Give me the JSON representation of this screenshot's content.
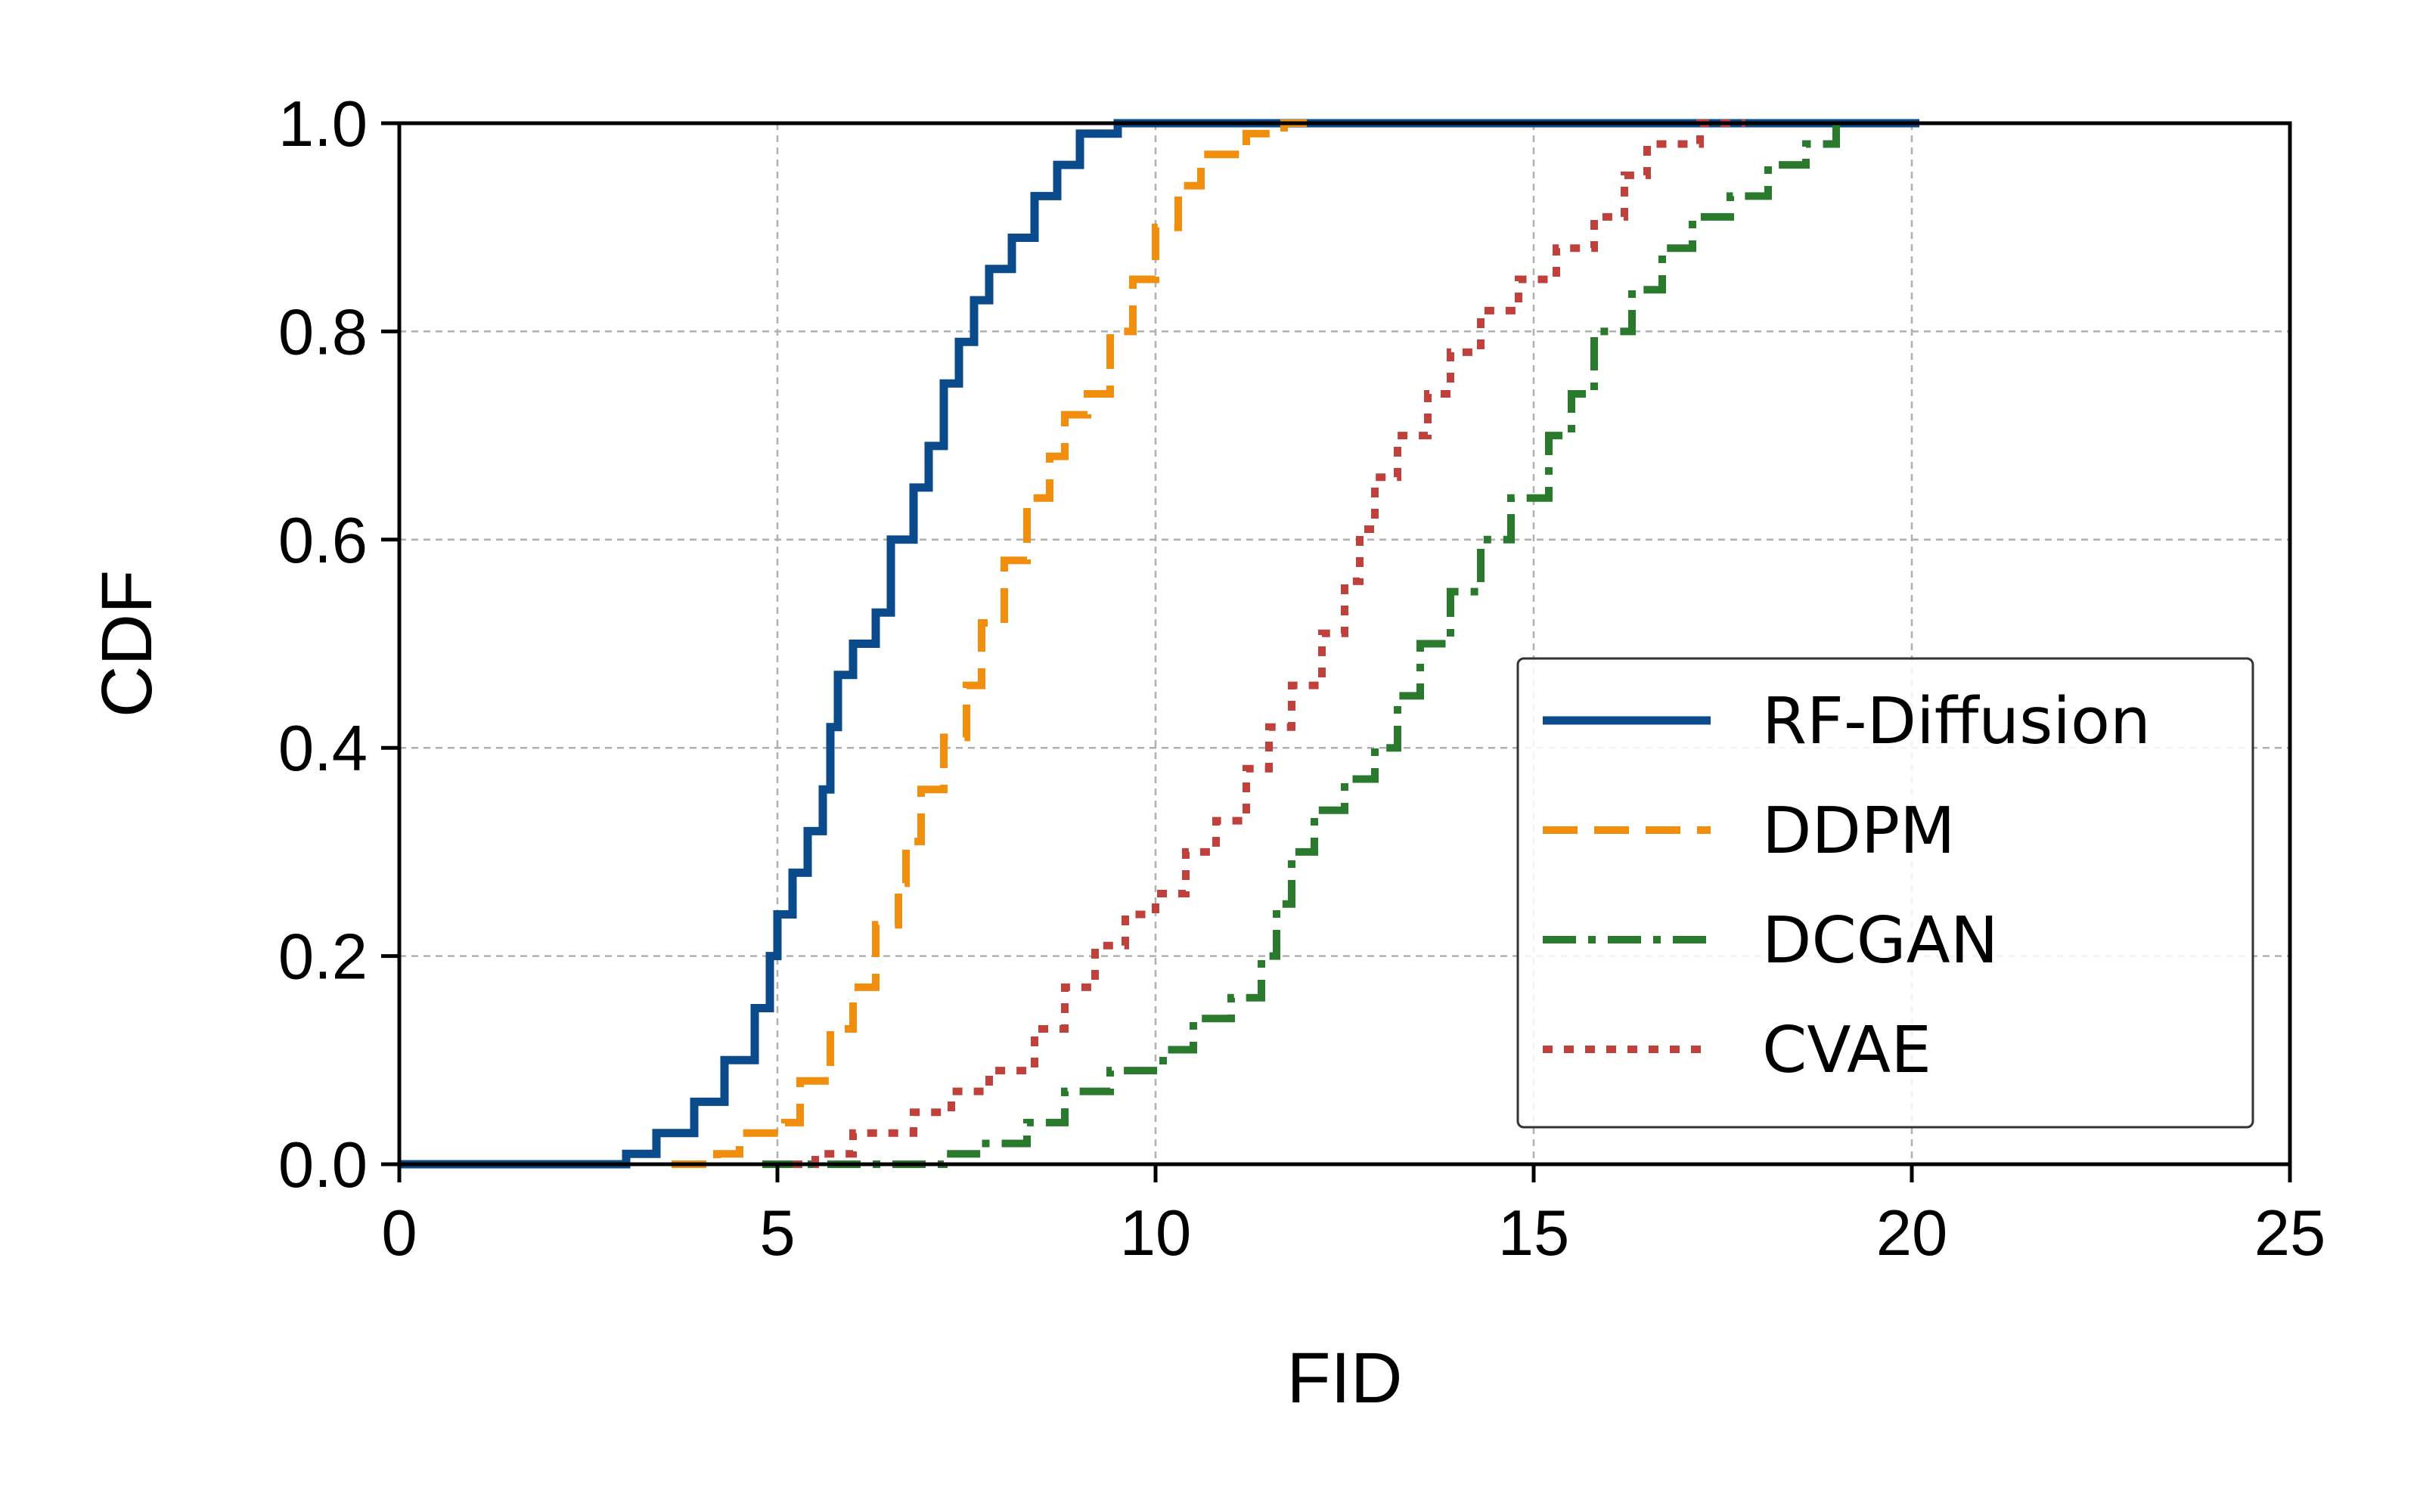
{
  "chart_data": {
    "type": "line",
    "title": "",
    "xlabel": "FID",
    "ylabel": "CDF",
    "xlim": [
      0,
      25
    ],
    "ylim": [
      0.0,
      1.0
    ],
    "xticks": [
      0,
      5,
      10,
      15,
      20,
      25
    ],
    "xtick_labels": [
      "0",
      "5",
      "10",
      "15",
      "20",
      "25"
    ],
    "yticks": [
      0.0,
      0.2,
      0.4,
      0.6,
      0.8,
      1.0
    ],
    "ytick_labels": [
      "0.0",
      "0.2",
      "0.4",
      "0.6",
      "0.8",
      "1.0"
    ],
    "grid": true,
    "legend_position": "lower-right",
    "series": [
      {
        "name": "RF-Diffusion",
        "color": "#0b4a8b",
        "style": "solid",
        "points": [
          [
            0.0,
            0.0
          ],
          [
            2.7,
            0.0
          ],
          [
            3.0,
            0.01
          ],
          [
            3.4,
            0.03
          ],
          [
            3.9,
            0.06
          ],
          [
            4.3,
            0.1
          ],
          [
            4.7,
            0.15
          ],
          [
            4.9,
            0.2
          ],
          [
            5.0,
            0.24
          ],
          [
            5.2,
            0.28
          ],
          [
            5.4,
            0.32
          ],
          [
            5.6,
            0.36
          ],
          [
            5.7,
            0.42
          ],
          [
            5.8,
            0.47
          ],
          [
            6.0,
            0.5
          ],
          [
            6.3,
            0.53
          ],
          [
            6.5,
            0.6
          ],
          [
            6.8,
            0.65
          ],
          [
            7.0,
            0.69
          ],
          [
            7.2,
            0.75
          ],
          [
            7.4,
            0.79
          ],
          [
            7.6,
            0.83
          ],
          [
            7.8,
            0.86
          ],
          [
            8.1,
            0.89
          ],
          [
            8.4,
            0.93
          ],
          [
            8.7,
            0.96
          ],
          [
            9.0,
            0.99
          ],
          [
            9.5,
            1.0
          ],
          [
            20.1,
            1.0
          ]
        ]
      },
      {
        "name": "DDPM",
        "color": "#f28e0d",
        "style": "dashed",
        "points": [
          [
            3.6,
            0.0
          ],
          [
            4.2,
            0.01
          ],
          [
            4.5,
            0.03
          ],
          [
            5.1,
            0.04
          ],
          [
            5.3,
            0.08
          ],
          [
            5.7,
            0.13
          ],
          [
            6.0,
            0.17
          ],
          [
            6.3,
            0.23
          ],
          [
            6.6,
            0.27
          ],
          [
            6.7,
            0.31
          ],
          [
            6.9,
            0.36
          ],
          [
            7.2,
            0.41
          ],
          [
            7.5,
            0.46
          ],
          [
            7.7,
            0.52
          ],
          [
            8.0,
            0.58
          ],
          [
            8.3,
            0.64
          ],
          [
            8.6,
            0.68
          ],
          [
            8.8,
            0.72
          ],
          [
            9.1,
            0.74
          ],
          [
            9.4,
            0.8
          ],
          [
            9.7,
            0.85
          ],
          [
            10.0,
            0.9
          ],
          [
            10.3,
            0.94
          ],
          [
            10.6,
            0.97
          ],
          [
            11.2,
            0.99
          ],
          [
            11.7,
            1.0
          ],
          [
            12.0,
            1.0
          ]
        ]
      },
      {
        "name": "DCGAN",
        "color": "#2a7a2e",
        "style": "dashdot",
        "points": [
          [
            4.8,
            0.0
          ],
          [
            6.1,
            0.0
          ],
          [
            7.2,
            0.01
          ],
          [
            7.7,
            0.02
          ],
          [
            8.3,
            0.04
          ],
          [
            8.8,
            0.07
          ],
          [
            9.4,
            0.09
          ],
          [
            10.1,
            0.11
          ],
          [
            10.5,
            0.14
          ],
          [
            11.0,
            0.16
          ],
          [
            11.4,
            0.2
          ],
          [
            11.6,
            0.25
          ],
          [
            11.8,
            0.3
          ],
          [
            12.1,
            0.34
          ],
          [
            12.5,
            0.37
          ],
          [
            12.9,
            0.4
          ],
          [
            13.2,
            0.45
          ],
          [
            13.5,
            0.5
          ],
          [
            13.9,
            0.55
          ],
          [
            14.3,
            0.6
          ],
          [
            14.7,
            0.64
          ],
          [
            15.2,
            0.7
          ],
          [
            15.5,
            0.74
          ],
          [
            15.8,
            0.8
          ],
          [
            16.3,
            0.84
          ],
          [
            16.7,
            0.88
          ],
          [
            17.1,
            0.91
          ],
          [
            17.6,
            0.93
          ],
          [
            18.1,
            0.96
          ],
          [
            18.6,
            0.98
          ],
          [
            19.0,
            1.0
          ]
        ]
      },
      {
        "name": "CVAE",
        "color": "#c0403c",
        "style": "dotted",
        "points": [
          [
            5.2,
            0.0
          ],
          [
            5.5,
            0.01
          ],
          [
            6.0,
            0.03
          ],
          [
            6.8,
            0.05
          ],
          [
            7.3,
            0.07
          ],
          [
            7.8,
            0.09
          ],
          [
            8.4,
            0.13
          ],
          [
            8.8,
            0.17
          ],
          [
            9.2,
            0.21
          ],
          [
            9.6,
            0.24
          ],
          [
            10.0,
            0.26
          ],
          [
            10.4,
            0.3
          ],
          [
            10.8,
            0.33
          ],
          [
            11.2,
            0.38
          ],
          [
            11.5,
            0.42
          ],
          [
            11.8,
            0.46
          ],
          [
            12.2,
            0.51
          ],
          [
            12.5,
            0.56
          ],
          [
            12.7,
            0.61
          ],
          [
            12.9,
            0.66
          ],
          [
            13.2,
            0.7
          ],
          [
            13.6,
            0.74
          ],
          [
            13.9,
            0.78
          ],
          [
            14.3,
            0.82
          ],
          [
            14.8,
            0.85
          ],
          [
            15.3,
            0.88
          ],
          [
            15.8,
            0.91
          ],
          [
            16.2,
            0.95
          ],
          [
            16.5,
            0.98
          ],
          [
            17.2,
            1.0
          ],
          [
            17.8,
            1.0
          ]
        ]
      }
    ]
  }
}
